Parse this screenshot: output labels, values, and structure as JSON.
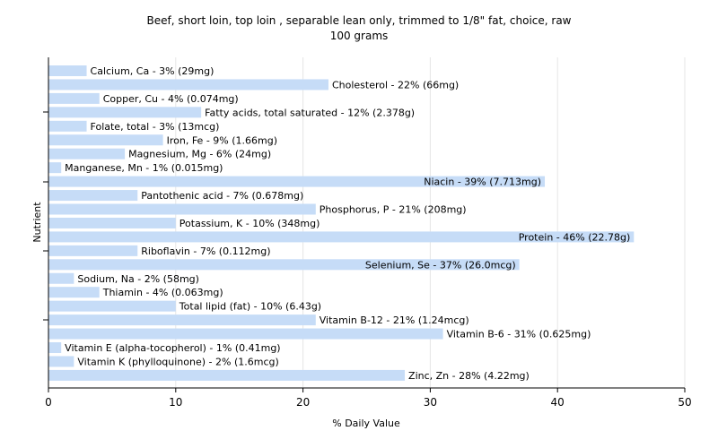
{
  "chart_data": {
    "type": "bar",
    "orientation": "horizontal",
    "title": "Beef, short loin, top loin , separable lean only, trimmed to 1/8\" fat, choice, raw",
    "subtitle": "100 grams",
    "xlabel": "% Daily Value",
    "ylabel": "Nutrient",
    "xlim": [
      0,
      50
    ],
    "xticks": [
      0,
      10,
      20,
      30,
      40,
      50
    ],
    "grid": true,
    "colors": {
      "bar": "#c6dcf7"
    },
    "categories": [
      "Calcium, Ca",
      "Cholesterol",
      "Copper, Cu",
      "Fatty acids, total saturated",
      "Folate, total",
      "Iron, Fe",
      "Magnesium, Mg",
      "Manganese, Mn",
      "Niacin",
      "Pantothenic acid",
      "Phosphorus, P",
      "Potassium, K",
      "Protein",
      "Riboflavin",
      "Selenium, Se",
      "Sodium, Na",
      "Thiamin",
      "Total lipid (fat)",
      "Vitamin B-12",
      "Vitamin B-6",
      "Vitamin E (alpha-tocopherol)",
      "Vitamin K (phylloquinone)",
      "Zinc, Zn"
    ],
    "values": [
      3,
      22,
      4,
      12,
      3,
      9,
      6,
      1,
      39,
      7,
      21,
      10,
      46,
      7,
      37,
      2,
      4,
      10,
      21,
      31,
      1,
      2,
      28
    ],
    "labels": [
      "Calcium, Ca - 3% (29mg)",
      "Cholesterol - 22% (66mg)",
      "Copper, Cu - 4% (0.074mg)",
      "Fatty acids, total saturated - 12% (2.378g)",
      "Folate, total - 3% (13mcg)",
      "Iron, Fe - 9% (1.66mg)",
      "Magnesium, Mg - 6% (24mg)",
      "Manganese, Mn - 1% (0.015mg)",
      "Niacin - 39% (7.713mg)",
      "Pantothenic acid - 7% (0.678mg)",
      "Phosphorus, P - 21% (208mg)",
      "Potassium, K - 10% (348mg)",
      "Protein - 46% (22.78g)",
      "Riboflavin - 7% (0.112mg)",
      "Selenium, Se - 37% (26.0mcg)",
      "Sodium, Na - 2% (58mg)",
      "Thiamin - 4% (0.063mg)",
      "Total lipid (fat) - 10% (6.43g)",
      "Vitamin B-12 - 21% (1.24mcg)",
      "Vitamin B-6 - 31% (0.625mg)",
      "Vitamin E (alpha-tocopherol) - 1% (0.41mg)",
      "Vitamin K (phylloquinone) - 2% (1.6mcg)",
      "Zinc, Zn - 28% (4.22mg)"
    ]
  }
}
